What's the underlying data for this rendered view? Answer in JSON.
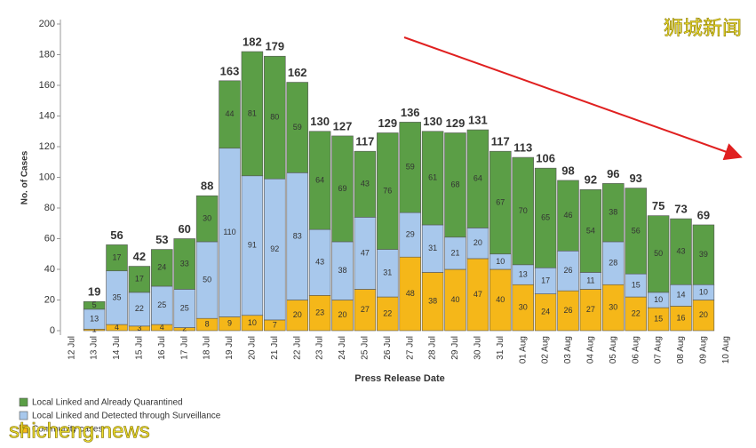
{
  "chart_data": {
    "type": "stacked_bar",
    "y_axis_label": "No. of Cases",
    "x_axis_label": "Press Release Date",
    "categories": [
      "12 Jul",
      "13 Jul",
      "14 Jul",
      "15 Jul",
      "16 Jul",
      "17 Jul",
      "18 Jul",
      "19 Jul",
      "20 Jul",
      "21 Jul",
      "22 Jul",
      "23 Jul",
      "24 Jul",
      "25 Jul",
      "26 Jul",
      "27 Jul",
      "28 Jul",
      "29 Jul",
      "30 Jul",
      "31 Jul",
      "01 Aug",
      "02 Aug",
      "03 Aug",
      "04 Aug",
      "05 Aug",
      "06 Aug",
      "07 Aug",
      "08 Aug",
      "09 Aug",
      "10 Aug"
    ],
    "series": [
      {
        "name": "Community cases",
        "color": "#f5b719",
        "values": [
          null,
          1,
          4,
          3,
          4,
          2,
          8,
          9,
          10,
          7,
          20,
          23,
          20,
          27,
          22,
          48,
          38,
          40,
          47,
          40,
          30,
          24,
          26,
          27,
          30,
          22,
          15,
          16,
          20,
          null
        ]
      },
      {
        "name": "Local Linked and Detected through Surveillance",
        "color": "#a8c8ec",
        "values": [
          null,
          13,
          35,
          22,
          25,
          25,
          50,
          110,
          91,
          92,
          83,
          43,
          38,
          47,
          31,
          29,
          31,
          21,
          20,
          10,
          13,
          17,
          26,
          11,
          28,
          15,
          10,
          14,
          10,
          null
        ]
      },
      {
        "name": "Local Linked and Already Quarantined",
        "color": "#5b9e46",
        "values": [
          null,
          5,
          17,
          17,
          24,
          33,
          30,
          44,
          81,
          80,
          59,
          64,
          69,
          43,
          76,
          59,
          61,
          68,
          64,
          67,
          70,
          65,
          46,
          54,
          38,
          56,
          50,
          43,
          39,
          null
        ]
      }
    ],
    "totals": [
      null,
      19,
      56,
      42,
      53,
      60,
      88,
      163,
      182,
      179,
      162,
      130,
      127,
      117,
      129,
      136,
      130,
      129,
      131,
      117,
      113,
      106,
      98,
      92,
      96,
      93,
      75,
      73,
      69,
      null
    ],
    "ylim": [
      0,
      200
    ],
    "yticks": [
      0,
      20,
      40,
      60,
      80,
      100,
      120,
      140,
      160,
      180,
      200
    ],
    "legend": "bottom-left",
    "watermarks": [
      "狮城新闻",
      "shicheng.news"
    ]
  }
}
